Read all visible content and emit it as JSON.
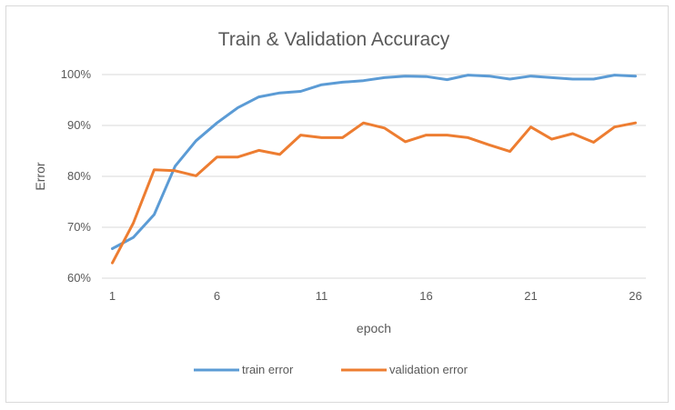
{
  "chart_data": {
    "type": "line",
    "title": "Train & Validation Accuracy",
    "xlabel": "epoch",
    "ylabel": "Error",
    "x": [
      1,
      2,
      3,
      4,
      5,
      6,
      7,
      8,
      9,
      10,
      11,
      12,
      13,
      14,
      15,
      16,
      17,
      18,
      19,
      20,
      21,
      22,
      23,
      24,
      25,
      26
    ],
    "x_tick_labels": [
      "1",
      "6",
      "11",
      "16",
      "21",
      "26"
    ],
    "ylim": [
      60,
      100
    ],
    "y_tick_labels": [
      "60%",
      "70%",
      "80%",
      "90%",
      "100%"
    ],
    "y_ticks": [
      60,
      70,
      80,
      90,
      100
    ],
    "grid": true,
    "legend_position": "bottom",
    "series": [
      {
        "name": "train error",
        "color": "#5b9bd5",
        "values": [
          65.8,
          68.0,
          72.5,
          82.0,
          87.0,
          90.5,
          93.5,
          95.6,
          96.4,
          96.7,
          98.0,
          98.5,
          98.8,
          99.4,
          99.7,
          99.6,
          99.0,
          99.9,
          99.7,
          99.1,
          99.7,
          99.4,
          99.1,
          99.1,
          99.9,
          99.7
        ]
      },
      {
        "name": "validation error",
        "color": "#ed7d31",
        "values": [
          63.0,
          70.8,
          81.3,
          81.1,
          80.1,
          83.8,
          83.8,
          85.1,
          84.3,
          88.1,
          87.6,
          87.6,
          90.5,
          89.5,
          86.8,
          88.1,
          88.1,
          87.6,
          86.2,
          84.9,
          89.7,
          87.3,
          88.4,
          86.7,
          89.7,
          90.5
        ]
      }
    ]
  }
}
